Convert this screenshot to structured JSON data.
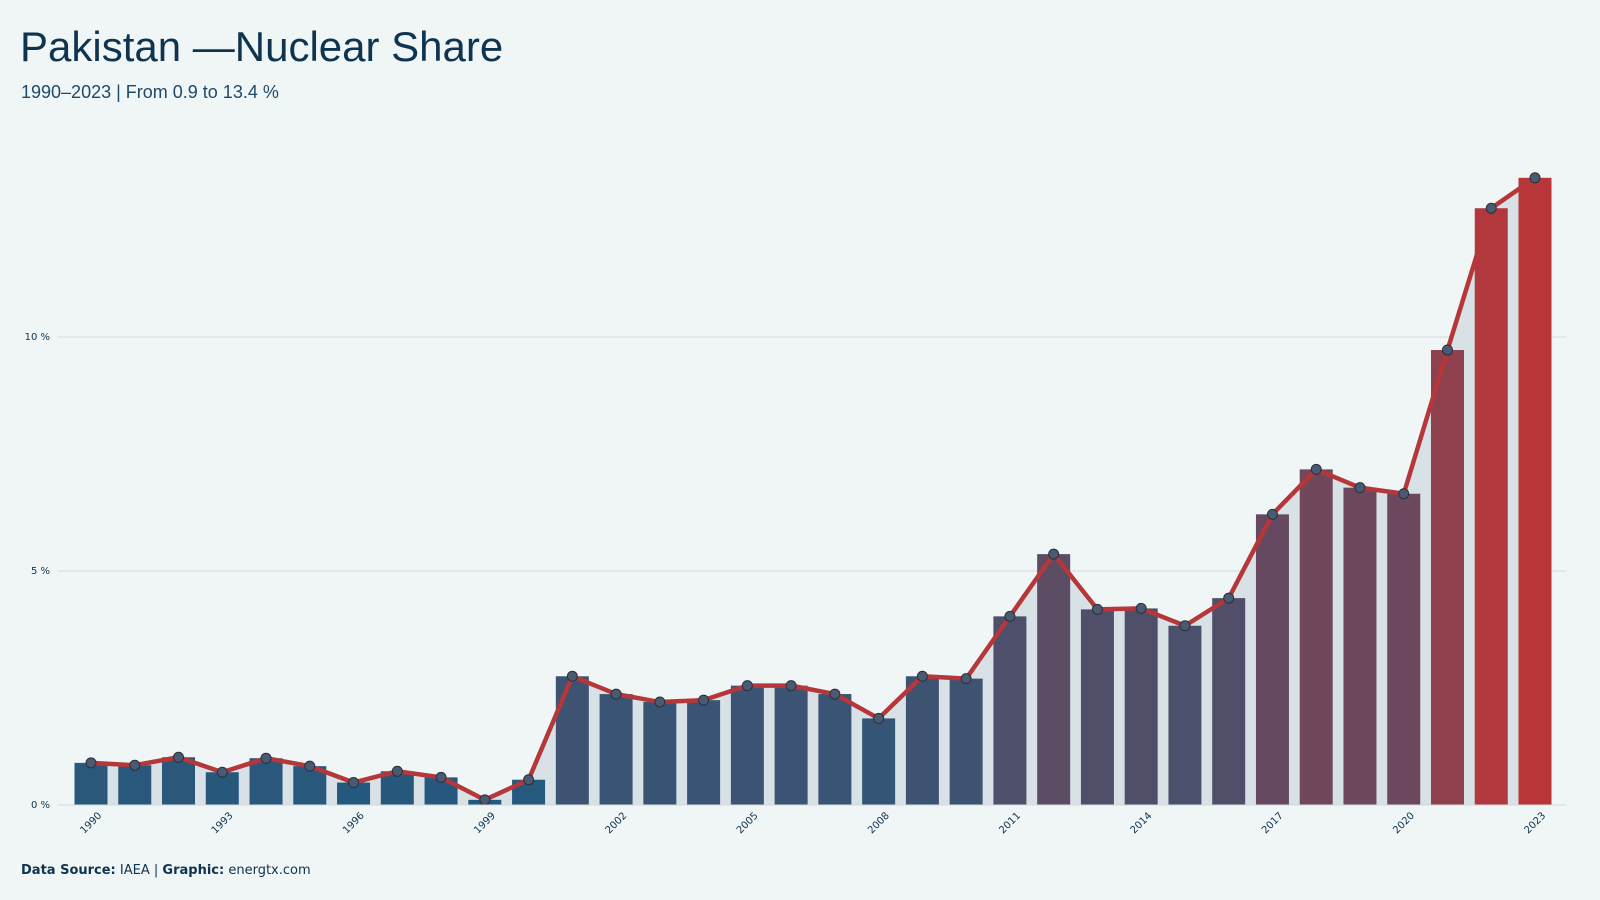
{
  "chart_data": {
    "type": "bar",
    "title": "Pakistan —Nuclear Share",
    "subtitle": "1990–2023 | From 0.9 to 13.4 %",
    "categories": [
      "1990",
      null,
      null,
      "1993",
      null,
      null,
      "1996",
      null,
      null,
      "1999",
      null,
      null,
      "2002",
      null,
      null,
      "2005",
      null,
      null,
      "2008",
      null,
      null,
      "2011",
      null,
      null,
      "2014",
      null,
      null,
      "2017",
      null,
      null,
      "2020",
      null,
      null,
      "2023"
    ],
    "values": [
      0.9,
      0.85,
      1.02,
      0.7,
      1.0,
      0.83,
      0.48,
      0.72,
      0.59,
      0.11,
      0.54,
      2.75,
      2.37,
      2.2,
      2.24,
      2.55,
      2.55,
      2.37,
      1.85,
      2.75,
      2.7,
      4.03,
      5.36,
      4.18,
      4.2,
      3.83,
      4.42,
      6.21,
      7.17,
      6.78,
      6.65,
      9.72,
      12.75,
      13.4
    ],
    "bar_colors": [
      "#1f5a80",
      "#b8363a"
    ],
    "line_color": "#b5373a",
    "marker_color": "#4a5a72",
    "area_color": "#d7e1e6",
    "ylim": [
      0,
      14.4
    ],
    "yticks": [
      {
        "value": 0,
        "label": "0 %"
      },
      {
        "value": 5,
        "label": "5 %"
      },
      {
        "value": 10,
        "label": "10 %"
      }
    ],
    "grid": true
  },
  "footer": {
    "source_label": "Data Source:",
    "source": "IAEA",
    "separator": "|",
    "graphic_label": "Graphic:",
    "graphic": "energtx.com"
  }
}
